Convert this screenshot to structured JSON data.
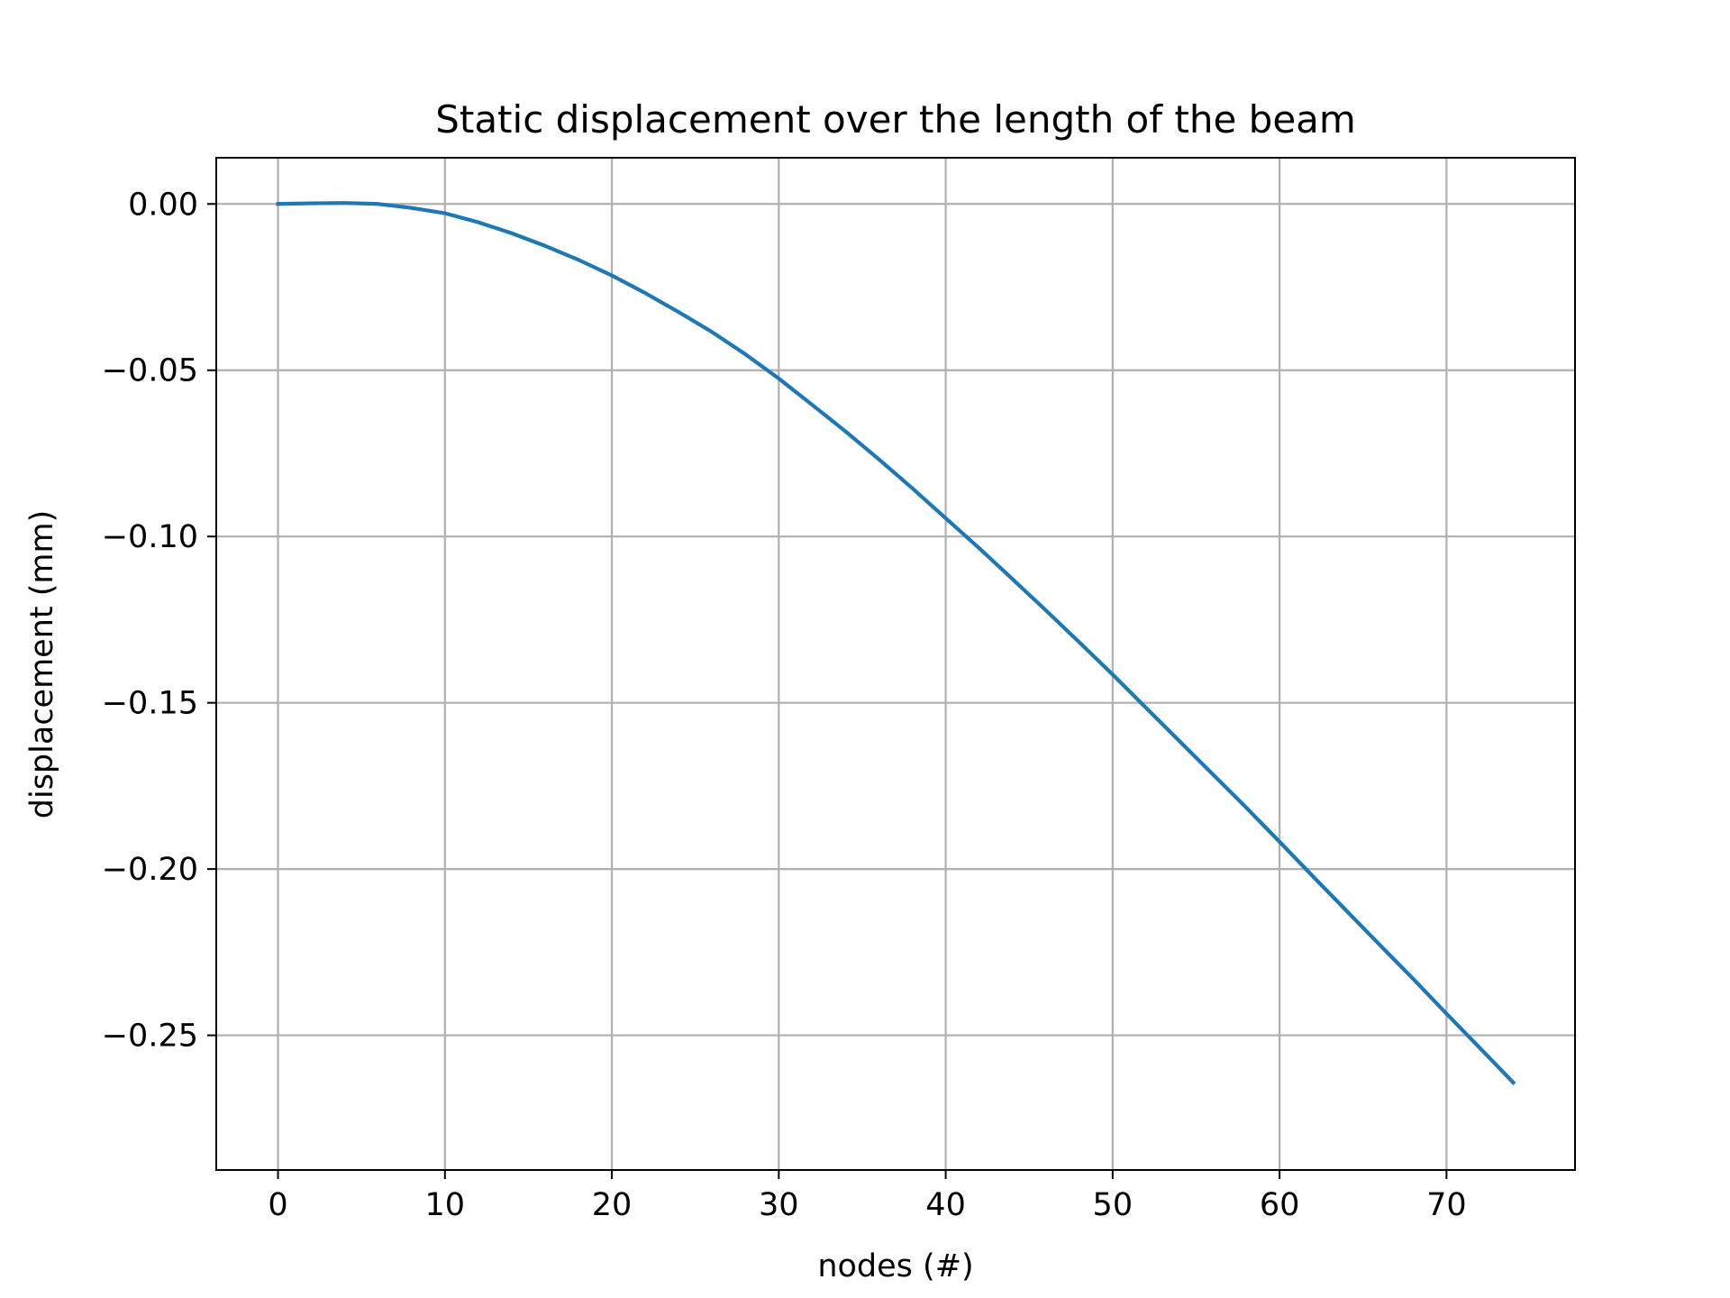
{
  "chart_data": {
    "type": "line",
    "title": "Static displacement over the length of the beam",
    "xlabel": "nodes (#)",
    "ylabel": "displacement (mm)",
    "xlim": [
      -3.7,
      77.7
    ],
    "ylim": [
      -0.2905,
      0.0139
    ],
    "x_ticks": [
      0,
      10,
      20,
      30,
      40,
      50,
      60,
      70
    ],
    "x_tick_labels": [
      "0",
      "10",
      "20",
      "30",
      "40",
      "50",
      "60",
      "70"
    ],
    "y_ticks": [
      0.0,
      -0.05,
      -0.1,
      -0.15,
      -0.2,
      -0.25
    ],
    "y_tick_labels": [
      "0.00",
      "−0.05",
      "−0.10",
      "−0.15",
      "−0.20",
      "−0.25"
    ],
    "grid": true,
    "legend": "none",
    "series": [
      {
        "color": "#1f77b4",
        "x": [
          0,
          2,
          4,
          6,
          8,
          10,
          12,
          14,
          16,
          18,
          20,
          22,
          24,
          26,
          28,
          30,
          32,
          34,
          36,
          38,
          40,
          42,
          44,
          46,
          48,
          50,
          52,
          54,
          56,
          58,
          60,
          62,
          64,
          66,
          68,
          70,
          72,
          74
        ],
        "values": [
          0.0,
          0.0002,
          0.0003,
          0.0,
          -0.0012,
          -0.0028,
          -0.0055,
          -0.0088,
          -0.0126,
          -0.0168,
          -0.0215,
          -0.0268,
          -0.0325,
          -0.0385,
          -0.0452,
          -0.0525,
          -0.0604,
          -0.0684,
          -0.0768,
          -0.0855,
          -0.0945,
          -0.1035,
          -0.1128,
          -0.1222,
          -0.1318,
          -0.1415,
          -0.1515,
          -0.1615,
          -0.1715,
          -0.1815,
          -0.1918,
          -0.2022,
          -0.2125,
          -0.2228,
          -0.233,
          -0.2435,
          -0.2538,
          -0.2642
        ]
      }
    ]
  },
  "colors": {
    "line": "#1f77b4",
    "grid": "#b0b0b0",
    "axes": "#000000"
  }
}
